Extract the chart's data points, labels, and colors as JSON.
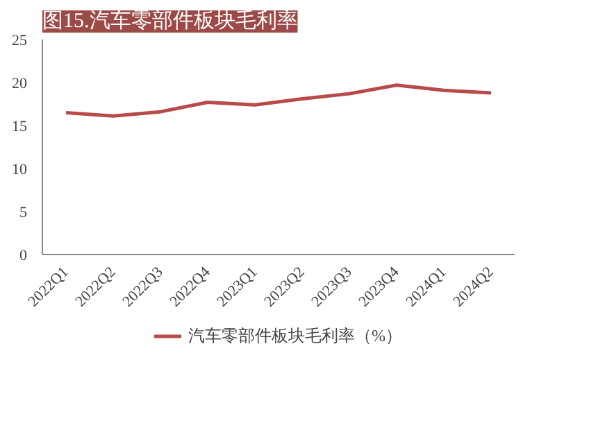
{
  "chart_data": {
    "type": "line",
    "title": "图15.汽车零部件板块毛利率",
    "categories": [
      "2022Q1",
      "2022Q2",
      "2022Q3",
      "2022Q4",
      "2023Q1",
      "2023Q2",
      "2023Q3",
      "2023Q4",
      "2024Q1",
      "2024Q2"
    ],
    "series": [
      {
        "name": "汽车零部件板块毛利率（%）",
        "color": "#b84a4a",
        "values": [
          16.5,
          16.1,
          16.6,
          17.7,
          17.4,
          18.1,
          18.7,
          19.7,
          19.1,
          18.8
        ]
      }
    ],
    "ylim": [
      0,
      25
    ],
    "yticks": [
      0,
      5,
      10,
      15,
      20,
      25
    ],
    "grid": false,
    "legend": "bottom",
    "marker": "none",
    "line_style": "solid"
  }
}
